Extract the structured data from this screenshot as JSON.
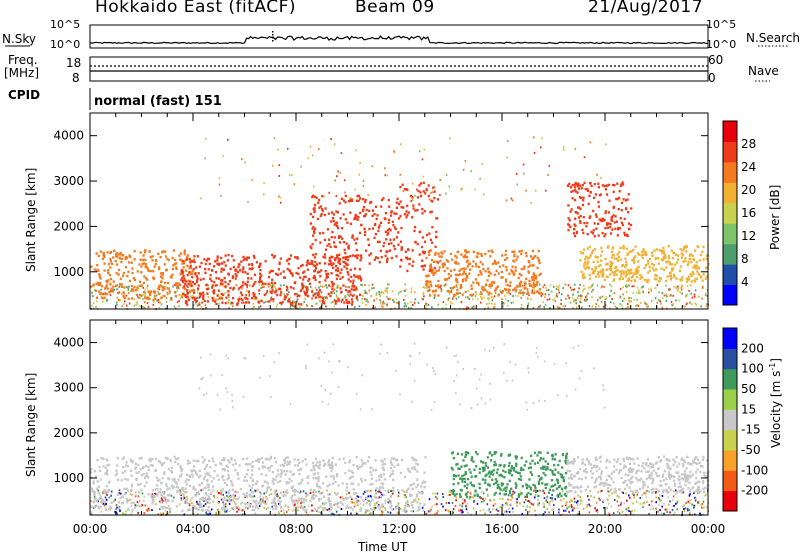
{
  "header": {
    "station": "Hokkaido East (fitACF)",
    "beam": "Beam 09",
    "date": "21/Aug/2017"
  },
  "top_panel": {
    "left_label": "N.Sky",
    "right_label": "N.Search",
    "left_ticks": [
      "10^5",
      "10^0"
    ],
    "right_ticks": [
      "10^5",
      "10^0"
    ]
  },
  "freq_panel": {
    "left_label_1": "Freq.",
    "left_label_2": "[MHz]",
    "left_ticks": [
      "18",
      "8"
    ],
    "right_ticks": [
      "60",
      "0"
    ],
    "right_label": "Nave"
  },
  "cpid_panel": {
    "label": "CPID",
    "value": "normal (fast) 151"
  },
  "colors": {
    "power_scale": [
      "#0000ff",
      "#1f4faa",
      "#4c9e6c",
      "#7dc46a",
      "#c9d24f",
      "#f2b133",
      "#f47a1f",
      "#ee3b1a",
      "#e8000b"
    ],
    "velocity_scale": [
      "#e8000b",
      "#f25a16",
      "#f7a12b",
      "#c9d24f",
      "#c8c8c8",
      "#9dd04a",
      "#3e9b5a",
      "#2a4fa0",
      "#0000ff"
    ]
  },
  "chart_data": [
    {
      "type": "heatmap",
      "quantity": "Power",
      "ylabel": "Slant Range [km]",
      "colorbar_label": "Power [dB]",
      "colorbar_ticks": [
        "4",
        "8",
        "12",
        "16",
        "20",
        "24",
        "28"
      ],
      "ylim": [
        180,
        4500
      ],
      "yticks": [
        "1000",
        "2000",
        "3000",
        "4000"
      ],
      "features": [
        {
          "x_start_hr": 0.0,
          "x_end_hr": 4.0,
          "range_low_km": 400,
          "range_high_km": 1500,
          "value_db": 24
        },
        {
          "x_start_hr": 3.5,
          "x_end_hr": 10.5,
          "range_low_km": 300,
          "range_high_km": 1400,
          "value_db": 28
        },
        {
          "x_start_hr": 8.5,
          "x_end_hr": 12.0,
          "range_low_km": 1200,
          "range_high_km": 2700,
          "value_db": 28
        },
        {
          "x_start_hr": 12.0,
          "x_end_hr": 13.5,
          "range_low_km": 1000,
          "range_high_km": 3000,
          "value_db": 26
        },
        {
          "x_start_hr": 13.0,
          "x_end_hr": 17.5,
          "range_low_km": 500,
          "range_high_km": 1500,
          "value_db": 24
        },
        {
          "x_start_hr": 18.5,
          "x_end_hr": 21.0,
          "range_low_km": 1800,
          "range_high_km": 3000,
          "value_db": 26
        },
        {
          "x_start_hr": 19.0,
          "x_end_hr": 24.0,
          "range_low_km": 800,
          "range_high_km": 1600,
          "value_db": 20
        }
      ]
    },
    {
      "type": "heatmap",
      "quantity": "Velocity",
      "ylabel": "Slant Range [km]",
      "xlabel": "Time UT",
      "colorbar_label": "Velocity [m s^-1]",
      "colorbar_ticks": [
        "-200",
        "-100",
        "-50",
        "-15",
        "15",
        "50",
        "100",
        "200"
      ],
      "ylim": [
        180,
        4500
      ],
      "yticks": [
        "1000",
        "2000",
        "3000",
        "4000"
      ],
      "xticks": [
        "00:00",
        "04:00",
        "08:00",
        "12:00",
        "16:00",
        "20:00",
        "00:00"
      ],
      "xlim_hr": [
        0,
        24
      ],
      "features": [
        {
          "x_start_hr": 0.0,
          "x_end_hr": 13.0,
          "range_low_km": 300,
          "range_high_km": 1500,
          "value_ms": 0
        },
        {
          "x_start_hr": 14.0,
          "x_end_hr": 18.5,
          "range_low_km": 600,
          "range_high_km": 1600,
          "value_ms": 60
        },
        {
          "x_start_hr": 18.5,
          "x_end_hr": 24.0,
          "range_low_km": 700,
          "range_high_km": 1500,
          "value_ms": 0
        }
      ]
    }
  ]
}
